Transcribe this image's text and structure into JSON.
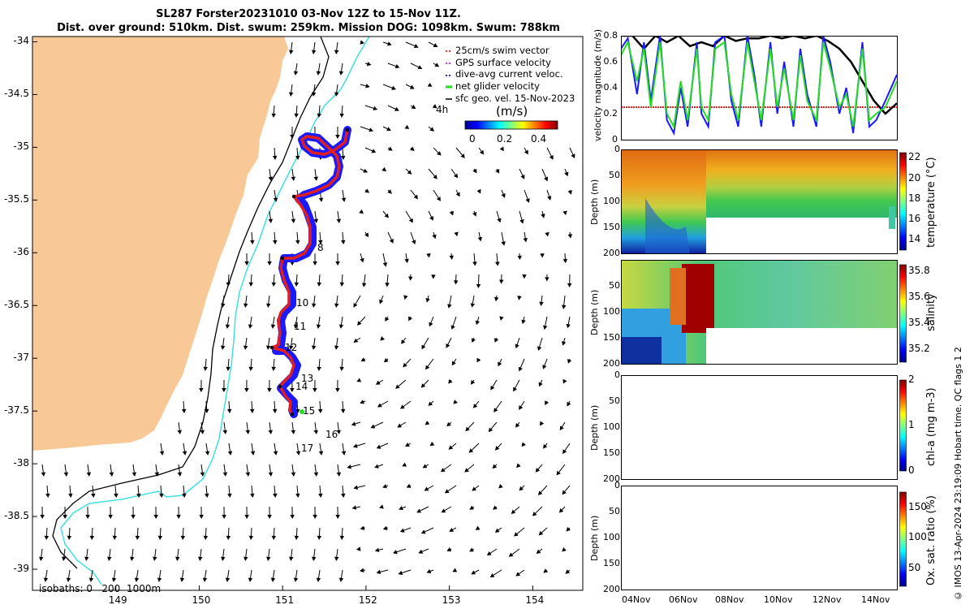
{
  "title": {
    "line1": "SL287 Forster20231010 03-Nov 12Z to 15-Nov 11Z.",
    "line2": "Dist. over ground: 510km. Dist. swum: 259km. Mission DOG: 1098km. Swum: 788km"
  },
  "map": {
    "x_ticks": [
      "149",
      "150",
      "151",
      "152",
      "153",
      "154"
    ],
    "y_ticks": [
      "-34",
      "-34.5",
      "-35",
      "-35.5",
      "-36",
      "-36.5",
      "-37",
      "-37.5",
      "-38",
      "-38.5",
      "-39"
    ],
    "legend": [
      "25cm/s swim vector",
      "GPS surface velocity",
      "dive-avg current veloc.",
      "net glider velocity",
      "sfc geo. vel. 15-Nov-2023"
    ],
    "colorbar_title": "(m/s)",
    "colorbar_ticks": [
      "0",
      "0.2",
      "0.4"
    ],
    "duration_label": "4h",
    "isobath_label": "isobaths: 0   200  1000m",
    "day_labels": [
      "8",
      "10",
      "11",
      "12",
      "13",
      "14",
      "15",
      "16",
      "17"
    ],
    "colors": {
      "land": "#f8c896",
      "isobath_200": "#000000",
      "isobath_1000": "#40e0e0",
      "track": "#e02020",
      "current": "#1a1aff"
    }
  },
  "panels": {
    "velocity": {
      "ylabel": "velocity magnitude (m/s)",
      "y_ticks": [
        "0.8",
        "0.6",
        "0.4",
        "0.2",
        "0"
      ]
    },
    "temperature": {
      "ylabel": "Depth (m)",
      "cb_title": "temperature (°C)",
      "cb_ticks": [
        "22",
        "20",
        "18",
        "16",
        "14"
      ],
      "depth_ticks": [
        "0",
        "50",
        "100",
        "150",
        "200"
      ]
    },
    "salinity": {
      "ylabel": "Depth (m)",
      "cb_title": "salinity",
      "cb_ticks": [
        "35.8",
        "35.6",
        "35.4",
        "35.2"
      ],
      "depth_ticks": [
        "50",
        "100",
        "150",
        "200"
      ]
    },
    "chla": {
      "ylabel": "Depth (m)",
      "cb_title": "chl-a (mg m-3)",
      "cb_ticks": [
        "2",
        "1",
        "0"
      ],
      "depth_ticks": [
        "0",
        "50",
        "100",
        "150",
        "200"
      ]
    },
    "oxygen": {
      "ylabel": "Depth (m)",
      "cb_title": "Ox. sat. ratio (%)",
      "cb_ticks": [
        "150",
        "100",
        "50"
      ],
      "depth_ticks": [
        "0",
        "50",
        "100",
        "150",
        "200"
      ]
    },
    "x_ticks": [
      "04Nov",
      "06Nov",
      "08Nov",
      "10Nov",
      "12Nov",
      "14Nov"
    ]
  },
  "side_note": "© IMOS 13-Apr-2024 23:19:09 Hobart time. QC flags 1  2",
  "chart_data": [
    {
      "type": "scatter",
      "title": "SL287 Forster20231010 03-Nov 12Z to 15-Nov 11Z.",
      "xlim": [
        148,
        154.6
      ],
      "ylim": [
        -39.2,
        -33.95
      ],
      "glider_track": [
        [
          151.8,
          -34.83
        ],
        [
          151.55,
          -35.05
        ],
        [
          151.35,
          -34.95
        ],
        [
          151.6,
          -35.1
        ],
        [
          151.0,
          -35.45
        ],
        [
          151.3,
          -35.55
        ],
        [
          151.2,
          -35.9
        ],
        [
          150.95,
          -36.05
        ],
        [
          151.1,
          -36.35
        ],
        [
          150.95,
          -36.55
        ],
        [
          151.05,
          -36.85
        ],
        [
          150.85,
          -36.9
        ],
        [
          151.2,
          -37.1
        ],
        [
          150.95,
          -37.3
        ],
        [
          151.25,
          -37.5
        ]
      ],
      "day_markers": [
        {
          "day": "8",
          "lon": 151.45,
          "lat": -35.95
        },
        {
          "day": "10",
          "lon": 151.2,
          "lat": -36.45
        },
        {
          "day": "11",
          "lon": 151.18,
          "lat": -36.72
        },
        {
          "day": "12",
          "lon": 151.08,
          "lat": -36.92
        },
        {
          "day": "13",
          "lon": 151.27,
          "lat": -37.2
        },
        {
          "day": "14",
          "lon": 151.2,
          "lat": -37.28
        },
        {
          "day": "15",
          "lon": 151.27,
          "lat": -37.5
        },
        {
          "day": "16",
          "lon": 151.55,
          "lat": -37.73
        },
        {
          "day": "17",
          "lon": 151.25,
          "lat": -37.9
        }
      ]
    },
    {
      "type": "line",
      "ylabel": "velocity magnitude (m/s)",
      "ylim": [
        0,
        0.8
      ],
      "xlim": [
        3.5,
        15.5
      ],
      "x_unit": "day of Nov 2023",
      "swim_speed": 0.25,
      "series": [
        {
          "color": "#000000",
          "x": [
            3.5,
            4.0,
            4.5,
            5.0,
            5.5,
            6.0,
            6.5,
            7.0,
            7.5,
            8.0,
            8.5,
            9.0,
            9.5,
            10.0,
            10.5,
            11.0,
            11.5,
            12.0,
            12.5,
            13.0,
            13.5,
            14.0,
            14.5,
            15.0,
            15.5
          ],
          "values": [
            0.8,
            0.8,
            0.7,
            0.8,
            0.75,
            0.8,
            0.72,
            0.75,
            0.72,
            0.8,
            0.76,
            0.78,
            0.78,
            0.8,
            0.78,
            0.8,
            0.78,
            0.8,
            0.76,
            0.7,
            0.6,
            0.45,
            0.3,
            0.2,
            0.28
          ]
        },
        {
          "color": "#1a1aff",
          "x": [
            3.5,
            3.8,
            4.2,
            4.5,
            4.8,
            5.2,
            5.5,
            5.8,
            6.1,
            6.4,
            6.8,
            7.0,
            7.3,
            7.6,
            8.0,
            8.3,
            8.6,
            9.0,
            9.3,
            9.6,
            10.0,
            10.3,
            10.6,
            11.0,
            11.3,
            11.6,
            12.0,
            12.3,
            12.6,
            13.0,
            13.3,
            13.6,
            14.0,
            14.3,
            14.6,
            15.0,
            15.5
          ],
          "values": [
            0.7,
            0.78,
            0.35,
            0.75,
            0.3,
            0.8,
            0.15,
            0.05,
            0.4,
            0.1,
            0.75,
            0.2,
            0.1,
            0.75,
            0.8,
            0.3,
            0.1,
            0.8,
            0.5,
            0.1,
            0.75,
            0.2,
            0.6,
            0.1,
            0.7,
            0.35,
            0.1,
            0.8,
            0.6,
            0.2,
            0.4,
            0.05,
            0.75,
            0.1,
            0.15,
            0.3,
            0.5
          ]
        },
        {
          "color": "#22dd22",
          "x": [
            3.5,
            3.8,
            4.2,
            4.5,
            4.8,
            5.2,
            5.5,
            5.8,
            6.1,
            6.4,
            6.8,
            7.0,
            7.3,
            7.6,
            8.0,
            8.3,
            8.6,
            9.0,
            9.3,
            9.6,
            10.0,
            10.3,
            10.6,
            11.0,
            11.3,
            11.6,
            12.0,
            12.3,
            12.6,
            13.0,
            13.3,
            13.6,
            14.0,
            14.3,
            14.6,
            15.0,
            15.5
          ],
          "values": [
            0.65,
            0.75,
            0.45,
            0.7,
            0.25,
            0.75,
            0.2,
            0.1,
            0.45,
            0.15,
            0.7,
            0.25,
            0.15,
            0.7,
            0.75,
            0.35,
            0.15,
            0.75,
            0.45,
            0.15,
            0.7,
            0.25,
            0.55,
            0.15,
            0.65,
            0.3,
            0.15,
            0.75,
            0.55,
            0.25,
            0.35,
            0.1,
            0.7,
            0.15,
            0.2,
            0.25,
            0.45
          ]
        }
      ]
    },
    {
      "type": "heatmap",
      "ylabel": "Depth (m)",
      "colorbar_label": "temperature (°C)",
      "clim": [
        13,
        22.5
      ],
      "depth_lim": [
        0,
        200
      ],
      "data_coverage": "full depth to ~7Nov, then upper ~130 m"
    },
    {
      "type": "heatmap",
      "ylabel": "Depth (m)",
      "colorbar_label": "salinity",
      "clim": [
        35.1,
        35.85
      ],
      "depth_lim": [
        0,
        200
      ]
    },
    {
      "type": "heatmap",
      "ylabel": "Depth (m)",
      "colorbar_label": "chl-a (mg m-3)",
      "clim": [
        0,
        2
      ],
      "depth_lim": [
        0,
        200
      ],
      "values": []
    },
    {
      "type": "heatmap",
      "ylabel": "Depth (m)",
      "colorbar_label": "Ox. sat. ratio (%)",
      "clim": [
        20,
        175
      ],
      "depth_lim": [
        0,
        200
      ],
      "values": []
    }
  ]
}
